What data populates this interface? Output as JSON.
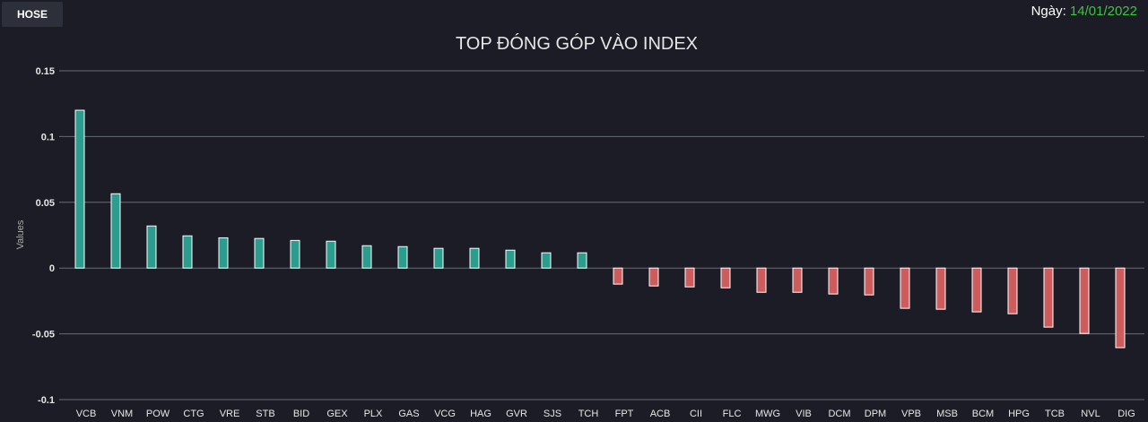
{
  "exchange_button": "HOSE",
  "date_label": "Ngày:",
  "date_value": "14/01/2022",
  "colors": {
    "positive": "#2a9d8f",
    "negative": "#cd5c5c",
    "background": "#1c1c26",
    "grid": "#666a75"
  },
  "chart_data": {
    "type": "bar",
    "title": "TOP ĐÓNG GÓP VÀO INDEX",
    "xlabel": "",
    "ylabel": "Values",
    "ylim": [
      -0.1,
      0.15
    ],
    "yticks": [
      0.15,
      0.1,
      0.05,
      0,
      -0.05,
      -0.1
    ],
    "ytick_labels": [
      "0.15",
      "0.1",
      "0.05",
      "0",
      "-0.05",
      "-0.1"
    ],
    "grid": true,
    "categories": [
      "VCB",
      "VNM",
      "POW",
      "CTG",
      "VRE",
      "STB",
      "BID",
      "GEX",
      "PLX",
      "GAS",
      "VCG",
      "HAG",
      "GVR",
      "SJS",
      "TCH",
      "FPT",
      "ACB",
      "CII",
      "FLC",
      "MWG",
      "VIB",
      "DCM",
      "DPM",
      "VPB",
      "MSB",
      "BCM",
      "HPG",
      "TCB",
      "NVL",
      "DIG"
    ],
    "values": [
      0.12,
      0.0565,
      0.032,
      0.0245,
      0.023,
      0.0225,
      0.021,
      0.0204,
      0.017,
      0.0163,
      0.015,
      0.015,
      0.0136,
      0.0116,
      0.0116,
      -0.0122,
      -0.0136,
      -0.0143,
      -0.015,
      -0.0184,
      -0.0184,
      -0.0197,
      -0.0204,
      -0.0306,
      -0.0313,
      -0.0333,
      -0.0347,
      -0.0449,
      -0.0497,
      -0.0605
    ]
  }
}
